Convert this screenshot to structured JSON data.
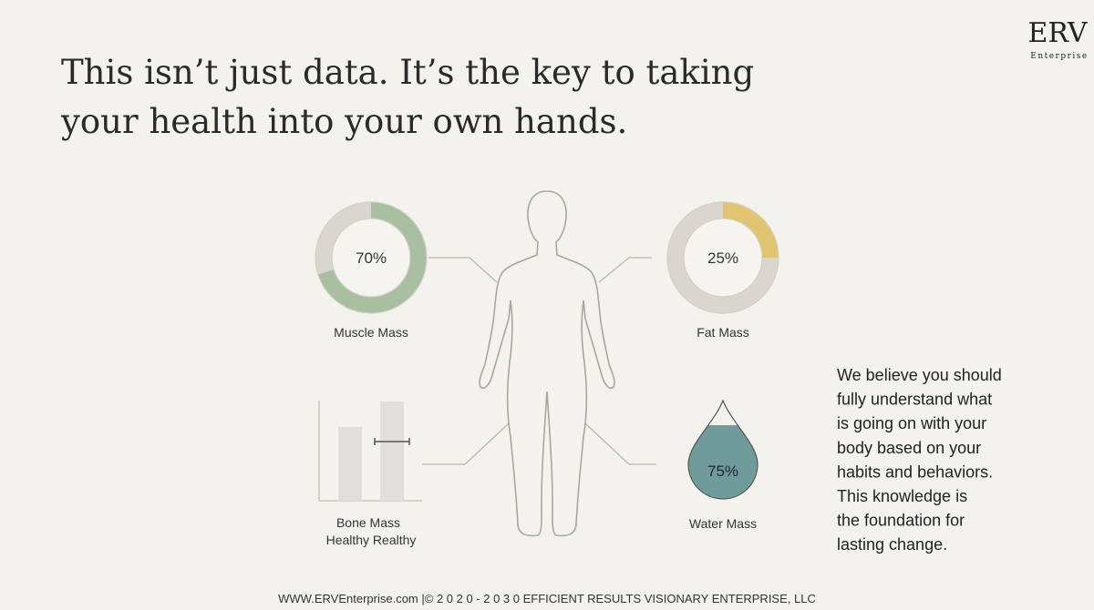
{
  "logo": {
    "mark": "ERV",
    "name": "Enterprise"
  },
  "heading": {
    "lines": [
      "This isn’t just data. It’s the key to taking",
      "your health into your own hands."
    ]
  },
  "metrics": [
    {
      "label": "Muscle Mass",
      "value": 70,
      "value_label": "70%",
      "color": "#a9c0a0"
    },
    {
      "label": "Fat Mass",
      "value": 25,
      "value_label": "25%",
      "color": "#e0c46f"
    },
    {
      "label": "Water Mass",
      "value": 75,
      "value_label": "75%",
      "color": "#6f9b9b"
    }
  ],
  "bone": {
    "lines": [
      "Bone Mass",
      "Healthy Realthy"
    ]
  },
  "paragraph": {
    "lines": [
      "We believe you should",
      "fully understand what",
      "is going on with your",
      "body based on your",
      "habits and behaviors.",
      "This knowledge is",
      "the foundation for",
      "lasting change."
    ]
  },
  "footer": "WWW.ERVEnterprise.com |© 2 0 2 0 - 2 0 3 0 EFFICIENT RESULTS VISIONARY ENTERPRISE, LLC"
}
